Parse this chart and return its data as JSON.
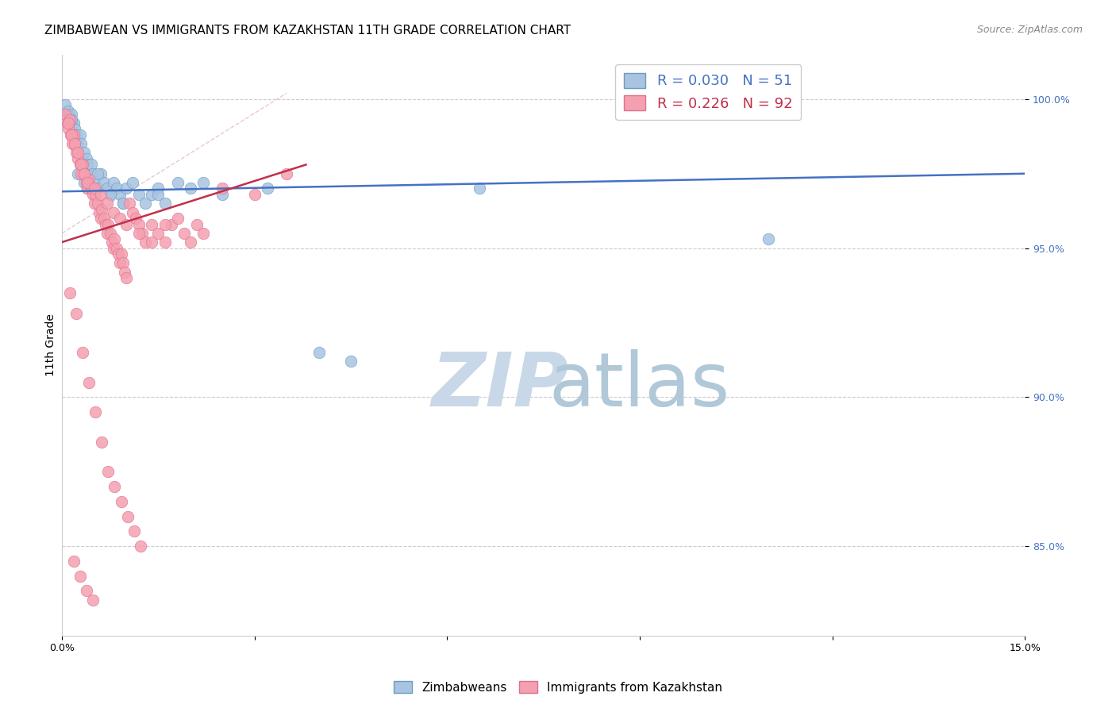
{
  "title": "ZIMBABWEAN VS IMMIGRANTS FROM KAZAKHSTAN 11TH GRADE CORRELATION CHART",
  "source": "Source: ZipAtlas.com",
  "ylabel": "11th Grade",
  "xlim": [
    0.0,
    15.0
  ],
  "ylim": [
    82.0,
    101.5
  ],
  "yticks": [
    85.0,
    90.0,
    95.0,
    100.0
  ],
  "ytick_labels": [
    "85.0%",
    "90.0%",
    "95.0%",
    "100.0%"
  ],
  "xticks": [
    0.0,
    3.0,
    6.0,
    9.0,
    12.0,
    15.0
  ],
  "xtick_labels": [
    "0.0%",
    "",
    "",
    "",
    "",
    "15.0%"
  ],
  "blue_scatter_x": [
    0.05,
    0.08,
    0.1,
    0.12,
    0.15,
    0.18,
    0.2,
    0.22,
    0.25,
    0.28,
    0.3,
    0.35,
    0.38,
    0.4,
    0.42,
    0.45,
    0.48,
    0.5,
    0.55,
    0.6,
    0.65,
    0.7,
    0.75,
    0.8,
    0.85,
    0.9,
    0.95,
    1.0,
    1.1,
    1.2,
    1.3,
    1.4,
    1.5,
    1.6,
    1.8,
    2.0,
    2.2,
    2.5,
    3.2,
    4.0,
    4.5,
    6.5,
    11.0,
    0.15,
    0.25,
    0.35,
    0.55,
    0.75,
    0.95,
    1.5,
    0.4
  ],
  "blue_scatter_y": [
    99.8,
    99.5,
    99.6,
    99.4,
    99.5,
    99.2,
    99.0,
    98.8,
    98.5,
    98.8,
    98.5,
    98.2,
    98.0,
    97.8,
    97.5,
    97.8,
    97.5,
    97.2,
    97.0,
    97.5,
    97.2,
    97.0,
    96.8,
    97.2,
    97.0,
    96.8,
    96.5,
    97.0,
    97.2,
    96.8,
    96.5,
    96.8,
    97.0,
    96.5,
    97.2,
    97.0,
    97.2,
    96.8,
    97.0,
    91.5,
    91.2,
    97.0,
    95.3,
    99.3,
    97.5,
    97.2,
    97.5,
    96.8,
    96.5,
    96.8,
    97.0
  ],
  "pink_scatter_x": [
    0.05,
    0.08,
    0.1,
    0.12,
    0.14,
    0.16,
    0.18,
    0.2,
    0.22,
    0.25,
    0.28,
    0.3,
    0.32,
    0.35,
    0.38,
    0.4,
    0.42,
    0.45,
    0.48,
    0.5,
    0.52,
    0.55,
    0.58,
    0.6,
    0.62,
    0.65,
    0.68,
    0.7,
    0.72,
    0.75,
    0.78,
    0.8,
    0.82,
    0.85,
    0.88,
    0.9,
    0.92,
    0.95,
    0.98,
    1.0,
    1.05,
    1.1,
    1.15,
    1.2,
    1.25,
    1.3,
    1.4,
    1.5,
    1.6,
    1.7,
    1.8,
    1.9,
    2.0,
    2.1,
    2.2,
    2.5,
    3.0,
    3.5,
    0.1,
    0.15,
    0.2,
    0.25,
    0.3,
    0.35,
    0.4,
    0.5,
    0.6,
    0.7,
    0.8,
    0.9,
    1.0,
    1.2,
    1.4,
    1.6,
    0.12,
    0.22,
    0.32,
    0.42,
    0.52,
    0.62,
    0.72,
    0.82,
    0.92,
    1.02,
    1.12,
    1.22,
    0.18,
    0.28,
    0.38,
    0.48
  ],
  "pink_scatter_y": [
    99.5,
    99.2,
    99.0,
    99.3,
    98.8,
    98.5,
    98.8,
    98.5,
    98.2,
    98.0,
    97.8,
    97.5,
    97.8,
    97.5,
    97.2,
    97.0,
    97.3,
    97.0,
    96.8,
    96.5,
    96.8,
    96.5,
    96.2,
    96.0,
    96.3,
    96.0,
    95.8,
    95.5,
    95.8,
    95.5,
    95.2,
    95.0,
    95.3,
    95.0,
    94.8,
    94.5,
    94.8,
    94.5,
    94.2,
    94.0,
    96.5,
    96.2,
    96.0,
    95.8,
    95.5,
    95.2,
    95.8,
    95.5,
    95.2,
    95.8,
    96.0,
    95.5,
    95.2,
    95.8,
    95.5,
    97.0,
    96.8,
    97.5,
    99.2,
    98.8,
    98.5,
    98.2,
    97.8,
    97.5,
    97.2,
    97.0,
    96.8,
    96.5,
    96.2,
    96.0,
    95.8,
    95.5,
    95.2,
    95.8,
    93.5,
    92.8,
    91.5,
    90.5,
    89.5,
    88.5,
    87.5,
    87.0,
    86.5,
    86.0,
    85.5,
    85.0,
    84.5,
    84.0,
    83.5,
    83.2
  ],
  "blue_line_x": [
    0.0,
    15.0
  ],
  "blue_line_y": [
    96.9,
    97.5
  ],
  "pink_line_x": [
    0.0,
    3.8
  ],
  "pink_line_y": [
    95.2,
    97.8
  ],
  "diag_line_x": [
    0.0,
    3.5
  ],
  "diag_line_y": [
    95.5,
    100.2
  ],
  "blue_color": "#a8c4e0",
  "blue_edge_color": "#6a9cc4",
  "pink_color": "#f4a0b0",
  "pink_edge_color": "#e07090",
  "blue_line_color": "#4472c4",
  "pink_line_color": "#c0304a",
  "diag_line_color": "#e8b8c8",
  "watermark_zip_color": "#c8d8e8",
  "watermark_atlas_color": "#b0c8d8",
  "background_color": "#ffffff",
  "grid_color": "#cccccc",
  "title_fontsize": 11,
  "source_fontsize": 9,
  "tick_fontsize": 9,
  "legend_fontsize": 13
}
